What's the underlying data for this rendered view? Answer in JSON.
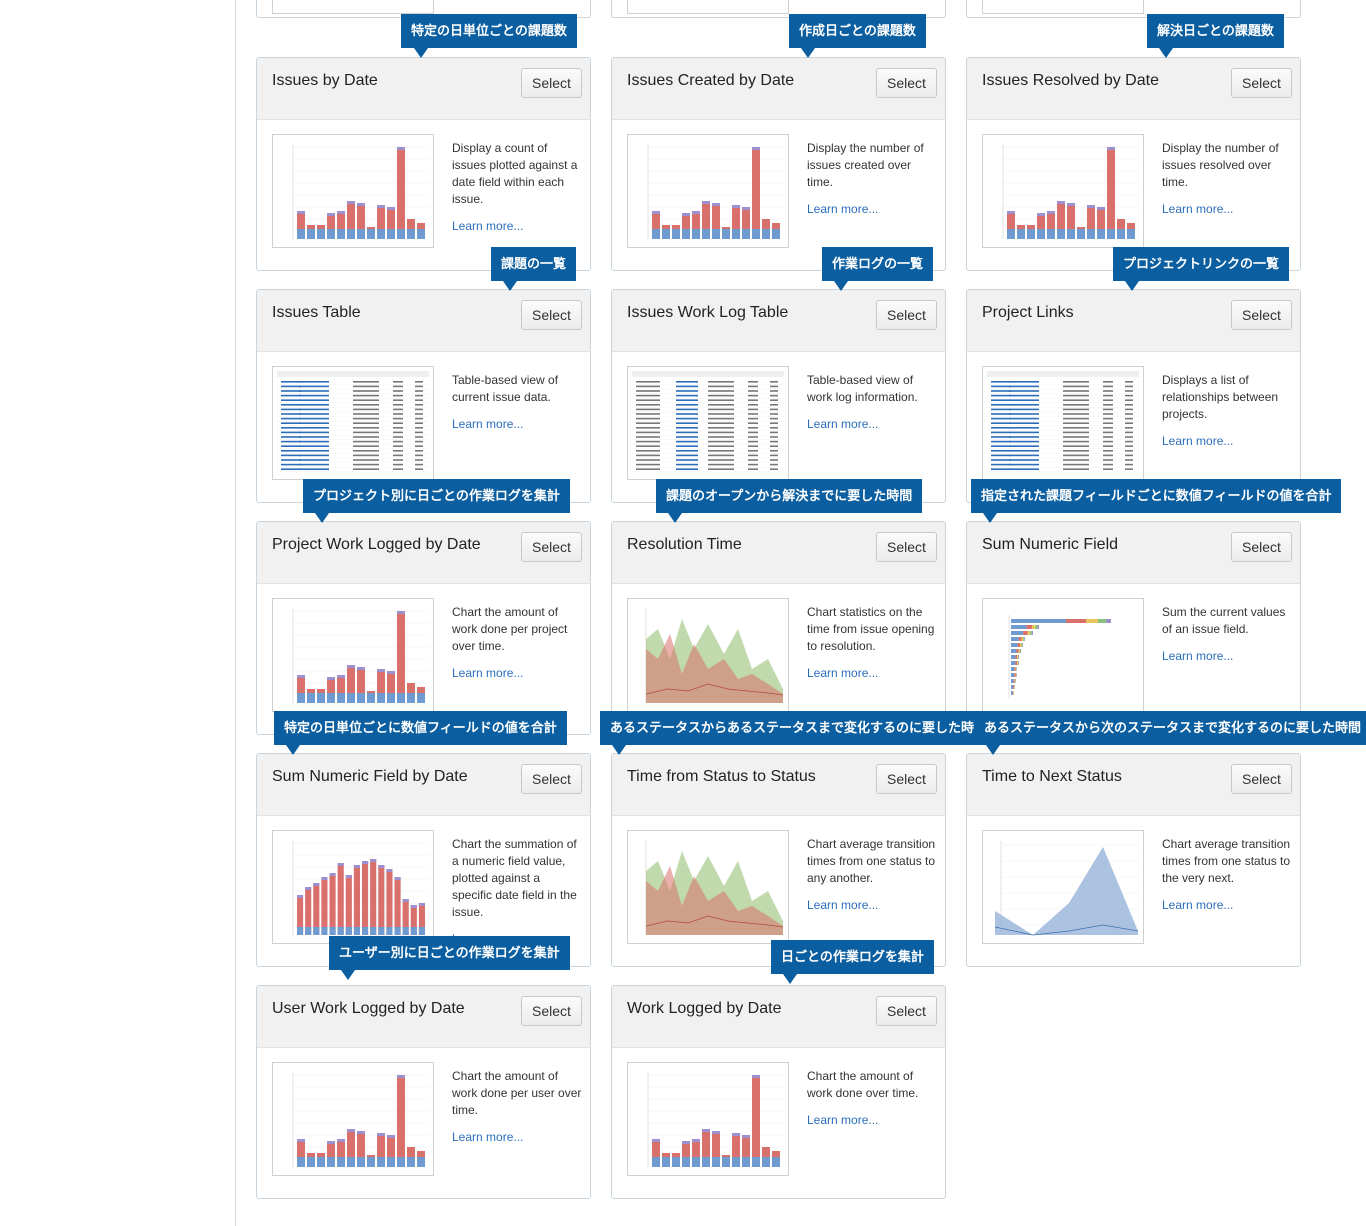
{
  "cards": [
    {
      "title": "Issues by Date",
      "select": "Select",
      "desc": "Display a count of issues plotted against a date field within each issue.",
      "learn": "Learn more...",
      "callout": "特定の日単位ごとの課題数"
    },
    {
      "title": "Issues Created by Date",
      "select": "Select",
      "desc": "Display the number of issues created over time.",
      "learn": "Learn more...",
      "callout": "作成日ごとの課題数"
    },
    {
      "title": "Issues Resolved by Date",
      "select": "Select",
      "desc": "Display the number of issues resolved over time.",
      "learn": "Learn more...",
      "callout": "解決日ごとの課題数"
    },
    {
      "title": "Issues Table",
      "select": "Select",
      "desc": "Table-based view of current issue data.",
      "learn": "Learn more...",
      "callout": "課題の一覧"
    },
    {
      "title": "Issues Work Log Table",
      "select": "Select",
      "desc": "Table-based view of work log information.",
      "learn": "Learn more...",
      "callout": "作業ログの一覧"
    },
    {
      "title": "Project Links",
      "select": "Select",
      "desc": "Displays a list of relationships between projects.",
      "learn": "Learn more...",
      "callout": "プロジェクトリンクの一覧"
    },
    {
      "title": "Project Work Logged by Date",
      "select": "Select",
      "desc": "Chart the amount of work done per project over time.",
      "learn": "Learn more...",
      "callout": "プロジェクト別に日ごとの作業ログを集計"
    },
    {
      "title": "Resolution Time",
      "select": "Select",
      "desc": "Chart statistics on the time from issue opening to resolution.",
      "learn": "Learn more...",
      "callout": "課題のオープンから解決までに要した時間"
    },
    {
      "title": "Sum Numeric Field",
      "select": "Select",
      "desc": "Sum the current values of an issue field.",
      "learn": "Learn more...",
      "callout": "指定された課題フィールドごとに数値フィールドの値を合計"
    },
    {
      "title": "Sum Numeric Field by Date",
      "select": "Select",
      "desc": "Chart the summation of a numeric field value, plotted against a specific date field in the issue.",
      "learn": "Learn more...",
      "callout": "特定の日単位ごとに数値フィールドの値を合計"
    },
    {
      "title": "Time from Status to Status",
      "select": "Select",
      "desc": "Chart average transition times from one status to any another.",
      "learn": "Learn more...",
      "callout": "あるステータスからあるステータスまで変化するのに要した時間"
    },
    {
      "title": "Time to Next Status",
      "select": "Select",
      "desc": "Chart average transition times from one status to the very next.",
      "learn": "Learn more...",
      "callout": "あるステータスから次のステータスまで変化するのに要した時間"
    },
    {
      "title": "User Work Logged by Date",
      "select": "Select",
      "desc": "Chart the amount of work done per user over time.",
      "learn": "Learn more...",
      "callout": "ユーザー別に日ごとの作業ログを集計"
    },
    {
      "title": "Work Logged by Date",
      "select": "Select",
      "desc": "Chart the amount of work done over time.",
      "learn": "Learn more...",
      "callout": "日ごとの作業ログを集計"
    }
  ],
  "colors": {
    "callout_bg": "#0b5e9f",
    "link": "#2a6ebb",
    "bar_red": "#d9706b",
    "bar_blue": "#6f9bd1",
    "area_green": "#a5c98a",
    "area_blue": "#9cb9dc"
  }
}
